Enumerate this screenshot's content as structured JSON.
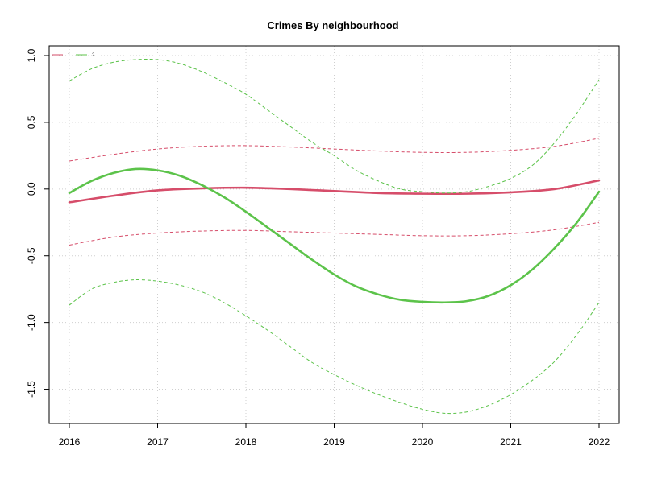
{
  "chart_data": {
    "type": "line",
    "title": "Crimes By neighbourhood",
    "xlabel": "",
    "ylabel": "",
    "xlim": [
      2016,
      2022
    ],
    "ylim": [
      -1.75,
      1.0
    ],
    "x_ticks": [
      2016,
      2017,
      2018,
      2019,
      2020,
      2021,
      2022
    ],
    "y_ticks": [
      -1.5,
      -1.0,
      -0.5,
      0.0,
      0.5,
      1.0
    ],
    "y_tick_labels": [
      "-1.5",
      "-1.0",
      "-0.5",
      "0.0",
      "0.5",
      "1.0"
    ],
    "grid": true,
    "legend_position": "top-left",
    "legend": [
      {
        "label": "1",
        "color": "#d64d6a"
      },
      {
        "label": "2",
        "color": "#5cc34a"
      }
    ],
    "series": [
      {
        "name": "1",
        "color": "#d64d6a",
        "x": [
          2016,
          2016.5,
          2017,
          2017.5,
          2018,
          2018.5,
          2019,
          2019.5,
          2020,
          2020.5,
          2021,
          2021.5,
          2022
        ],
        "fit": [
          -0.1,
          -0.05,
          -0.01,
          0.005,
          0.01,
          0.0,
          -0.015,
          -0.03,
          -0.035,
          -0.035,
          -0.025,
          0.0,
          0.065
        ],
        "lower": [
          -0.42,
          -0.36,
          -0.33,
          -0.315,
          -0.31,
          -0.32,
          -0.33,
          -0.34,
          -0.35,
          -0.35,
          -0.335,
          -0.305,
          -0.25
        ],
        "upper": [
          0.21,
          0.26,
          0.3,
          0.32,
          0.325,
          0.315,
          0.3,
          0.285,
          0.275,
          0.275,
          0.29,
          0.32,
          0.38
        ]
      },
      {
        "name": "2",
        "color": "#5cc34a",
        "x": [
          2016,
          2016.25,
          2016.5,
          2016.75,
          2017,
          2017.25,
          2017.5,
          2017.75,
          2018,
          2018.25,
          2018.5,
          2018.75,
          2019,
          2019.25,
          2019.5,
          2019.75,
          2020,
          2020.25,
          2020.5,
          2020.75,
          2021,
          2021.25,
          2021.5,
          2021.75,
          2022
        ],
        "fit": [
          -0.03,
          0.06,
          0.12,
          0.15,
          0.14,
          0.1,
          0.03,
          -0.06,
          -0.17,
          -0.29,
          -0.41,
          -0.53,
          -0.64,
          -0.73,
          -0.79,
          -0.83,
          -0.845,
          -0.85,
          -0.84,
          -0.8,
          -0.72,
          -0.6,
          -0.44,
          -0.25,
          -0.02
        ],
        "lower": [
          -0.87,
          -0.75,
          -0.7,
          -0.68,
          -0.69,
          -0.72,
          -0.77,
          -0.85,
          -0.95,
          -1.06,
          -1.18,
          -1.3,
          -1.39,
          -1.47,
          -1.54,
          -1.6,
          -1.65,
          -1.68,
          -1.67,
          -1.62,
          -1.54,
          -1.43,
          -1.29,
          -1.09,
          -0.85
        ],
        "upper": [
          0.81,
          0.9,
          0.95,
          0.97,
          0.97,
          0.94,
          0.88,
          0.8,
          0.71,
          0.59,
          0.47,
          0.35,
          0.25,
          0.14,
          0.06,
          0.0,
          -0.02,
          -0.03,
          -0.02,
          0.02,
          0.08,
          0.18,
          0.35,
          0.57,
          0.82
        ]
      }
    ]
  }
}
